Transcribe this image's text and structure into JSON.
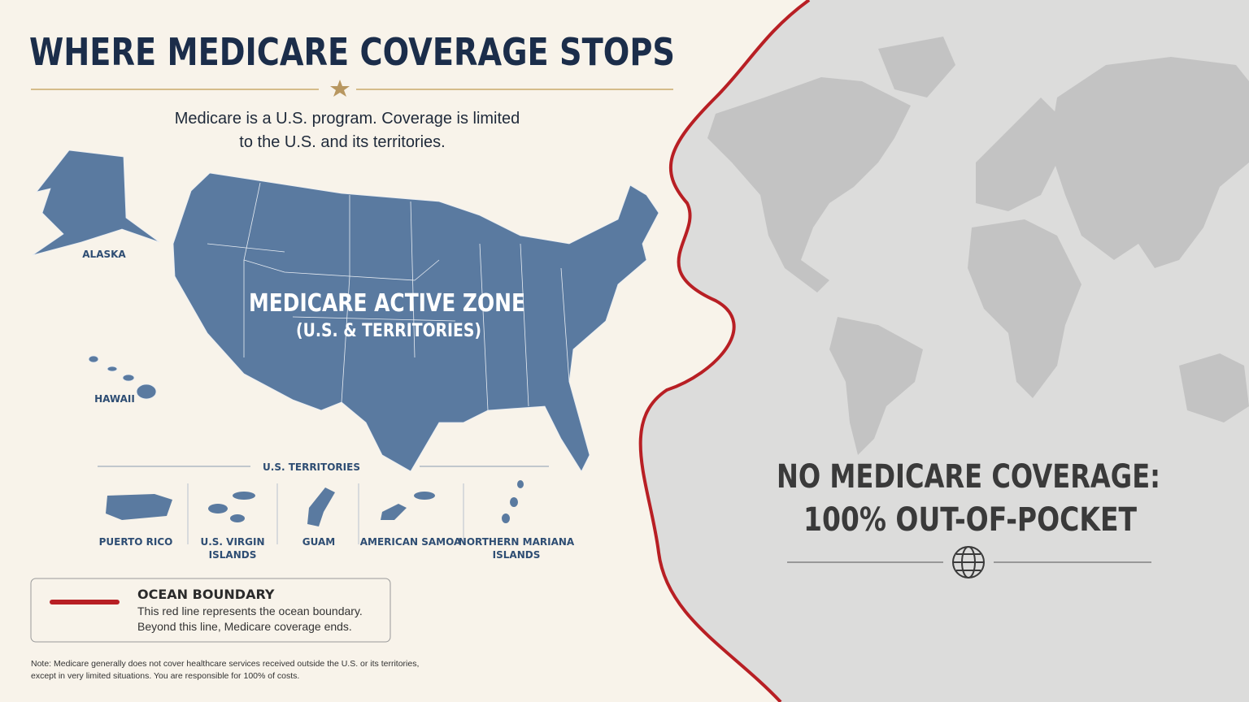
{
  "header": {
    "title": "WHERE MEDICARE COVERAGE STOPS",
    "subtitle": [
      "Medicare is a U.S. program. Coverage is limited",
      "to the U.S. and its territories."
    ]
  },
  "us_map": {
    "labels": {
      "alaska": "ALASKA",
      "hawaii": "HAWAII"
    },
    "zone": [
      "MEDICARE ACTIVE ZONE",
      "(U.S. & TERRITORIES)"
    ]
  },
  "territories": {
    "heading": "U.S. TERRITORIES",
    "items": [
      [
        "PUERTO RICO"
      ],
      [
        "U.S. VIRGIN",
        "ISLANDS"
      ],
      [
        "GUAM"
      ],
      [
        "AMERICAN SAMOA"
      ],
      [
        "NORTHERN MARIANA",
        "ISLANDS"
      ]
    ]
  },
  "legend": {
    "title": "OCEAN BOUNDARY",
    "text": [
      "This red line represents the ocean boundary.",
      "Beyond this line, Medicare coverage ends."
    ]
  },
  "note": [
    "Note: Medicare generally does not cover healthcare services received outside the U.S. or its territories,",
    "except in very limited situations. You are responsible for 100% of costs."
  ],
  "outside": [
    "NO MEDICARE COVERAGE:",
    "100% OUT-OF-POCKET"
  ]
}
